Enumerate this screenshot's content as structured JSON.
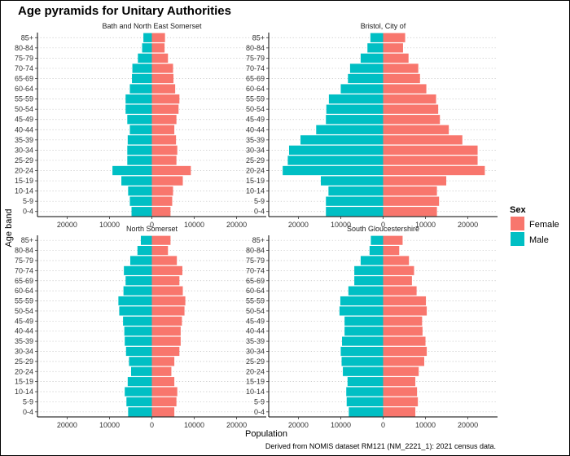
{
  "chart_data": {
    "type": "bar",
    "title": "Age pyramids for Unitary Authorities",
    "xlabel": "Population",
    "ylabel": "Age band",
    "caption": "Derived from NOMIS dataset RM121  (NM_2221_1): 2021 census data.",
    "xlim": [
      -27000,
      27000
    ],
    "xticks": [
      -20000,
      -10000,
      0,
      10000,
      20000
    ],
    "xtick_labels": [
      "20000",
      "10000",
      "0",
      "10000",
      "20000"
    ],
    "categories": [
      "0-4",
      "5-9",
      "10-14",
      "15-19",
      "20-24",
      "25-29",
      "30-34",
      "35-39",
      "40-44",
      "45-49",
      "50-54",
      "55-59",
      "60-64",
      "65-69",
      "70-74",
      "75-79",
      "80-84",
      "85+"
    ],
    "grid": true,
    "legend": {
      "title": "Sex",
      "position": "right",
      "entries": [
        {
          "name": "Female",
          "color": "#F8766D"
        },
        {
          "name": "Male",
          "color": "#00BFC4"
        }
      ]
    },
    "facets": [
      {
        "name": "Bath and North East Somerset",
        "series": [
          {
            "name": "Female",
            "values": [
              4400,
              4800,
              5000,
              7300,
              9200,
              5800,
              6000,
              5700,
              5300,
              5800,
              6300,
              6500,
              5500,
              5100,
              5000,
              3800,
              3000,
              3100
            ]
          },
          {
            "name": "Male",
            "values": [
              4800,
              5200,
              5600,
              7200,
              9300,
              5800,
              5800,
              5700,
              5200,
              5800,
              6200,
              6200,
              5200,
              4700,
              4600,
              3300,
              2300,
              2000
            ]
          }
        ]
      },
      {
        "name": "Bristol, City of",
        "series": [
          {
            "name": "Female",
            "values": [
              12700,
              13200,
              12700,
              14900,
              24000,
              22300,
              22300,
              18700,
              15500,
              13400,
              13000,
              12500,
              10200,
              8700,
              8300,
              6000,
              4700,
              5200
            ]
          },
          {
            "name": "Male",
            "values": [
              13500,
              13500,
              12900,
              14700,
              23700,
              22500,
              22200,
              19500,
              15800,
              13500,
              13400,
              12800,
              10000,
              8300,
              7800,
              5300,
              3700,
              3000
            ]
          }
        ]
      },
      {
        "name": "North Somerset",
        "series": [
          {
            "name": "Female",
            "values": [
              5300,
              5800,
              6000,
              5300,
              4600,
              5300,
              6500,
              6800,
              6800,
              7100,
              7700,
              7900,
              7300,
              6500,
              7200,
              5900,
              3800,
              4400
            ]
          },
          {
            "name": "Male",
            "values": [
              5600,
              6000,
              6400,
              5700,
              4900,
              5400,
              6100,
              6400,
              6500,
              6800,
              7700,
              7900,
              6700,
              6200,
              6600,
              5100,
              3400,
              2600
            ]
          }
        ]
      },
      {
        "name": "South Gloucestershire",
        "series": [
          {
            "name": "Female",
            "values": [
              7600,
              8200,
              8000,
              7600,
              8400,
              9700,
              10300,
              10000,
              9300,
              9200,
              10300,
              10100,
              7900,
              6800,
              7300,
              6100,
              3800,
              4600
            ]
          },
          {
            "name": "Male",
            "values": [
              8100,
              8600,
              8700,
              8400,
              9500,
              9800,
              10000,
              9700,
              9100,
              9100,
              10300,
              10100,
              8200,
              6800,
              6800,
              5300,
              3200,
              2900
            ]
          }
        ]
      }
    ]
  }
}
